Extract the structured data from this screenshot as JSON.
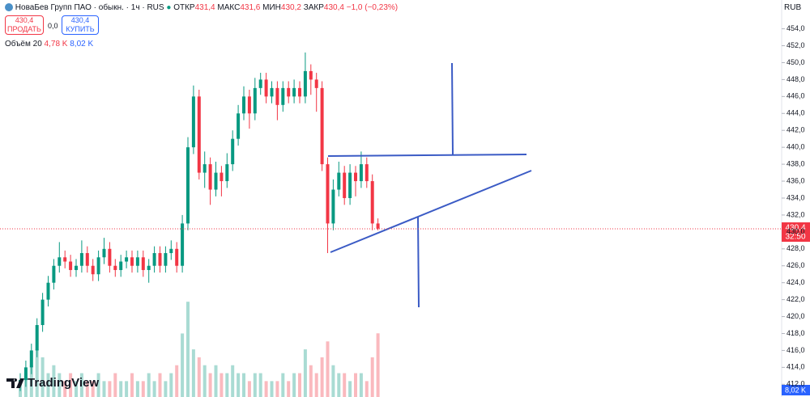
{
  "header": {
    "symbol": "НоваБев Групп ПАО · обыкн. · 1ч · RUS",
    "ohlc": [
      {
        "label": "ОТКР",
        "value": "431,4"
      },
      {
        "label": "МАКС",
        "value": "431,6"
      },
      {
        "label": "МИН",
        "value": "430,2"
      },
      {
        "label": "ЗАКР",
        "value": "430,4"
      }
    ],
    "change": "−1,0 (−0,23%)",
    "currency": "RUB"
  },
  "trade": {
    "sell_price": "430,4",
    "sell": "ПРОДАТЬ",
    "spread": "0,0",
    "buy_price": "430,4",
    "buy": "КУПИТЬ"
  },
  "volume_legend": {
    "name": "Объём 20",
    "ma": "4,78 K",
    "last": "8,02 K"
  },
  "price_tag": {
    "price": "430,4",
    "countdown": "32:50"
  },
  "logo": "TradingView",
  "chart_data": {
    "type": "candlestick",
    "up_color": "#089981",
    "down_color": "#f23645",
    "open": [
      412,
      412.5,
      414,
      416,
      419,
      422,
      424,
      426,
      427,
      426.5,
      425.5,
      426,
      427.5,
      426,
      425,
      427,
      428,
      426,
      425.5,
      426.5,
      427,
      426,
      427,
      425.5,
      426,
      427.5,
      426,
      427.5,
      428,
      426,
      431,
      440,
      446,
      437,
      438,
      435,
      437,
      436,
      438,
      441,
      444,
      446,
      444,
      447,
      448,
      446,
      447,
      445,
      447,
      446,
      447,
      446,
      449,
      448,
      447,
      438,
      431,
      435,
      437,
      434,
      437,
      436,
      438,
      436,
      431
    ],
    "high": [
      413.3,
      414.8,
      416.8,
      419.8,
      422.8,
      424.8,
      426.8,
      428.8,
      427.8,
      427.3,
      426.8,
      429,
      428.3,
      426.8,
      427.8,
      429.3,
      428.8,
      426.8,
      427.3,
      427.8,
      427.8,
      427.8,
      427.8,
      426.8,
      428.3,
      428.3,
      428.3,
      429,
      428.8,
      432,
      441.2,
      447.3,
      446.8,
      439.5,
      438.8,
      438.3,
      437.8,
      439.3,
      442,
      445,
      447.2,
      446.8,
      448.2,
      448.8,
      448.8,
      447.8,
      447.8,
      447.8,
      447.8,
      448,
      447.8,
      451.2,
      449.8,
      448.8,
      447.8,
      438.8,
      436.2,
      438.3,
      437.8,
      438,
      437.8,
      439.5,
      438.8,
      436.8,
      431.6
    ],
    "low": [
      411.2,
      411.7,
      413.2,
      415.2,
      418.2,
      421.2,
      423.2,
      425.2,
      425.7,
      424.7,
      424.7,
      425.2,
      425.2,
      424.2,
      424.2,
      426.2,
      425.2,
      424.7,
      424.7,
      425.7,
      425.2,
      425.2,
      424.7,
      424,
      425.2,
      425.2,
      425.2,
      426.7,
      425.2,
      425.2,
      430.2,
      439.2,
      436.2,
      435.2,
      433.2,
      434.2,
      434.2,
      435.2,
      437.2,
      440.2,
      443.2,
      442.2,
      443.2,
      446.2,
      445.2,
      445.2,
      443.2,
      444.2,
      445.2,
      445.2,
      445.2,
      445.2,
      446.2,
      444.2,
      437.2,
      427.5,
      430.2,
      434.2,
      433.2,
      433.2,
      434.2,
      435.2,
      435.2,
      430.2,
      430.2
    ],
    "close": [
      412.5,
      414,
      416,
      419,
      422,
      424,
      426,
      427,
      426.5,
      425.5,
      426,
      427.5,
      426,
      425,
      427,
      428,
      426,
      425.5,
      426.5,
      427,
      426,
      427,
      425.5,
      426,
      427.5,
      426,
      427.5,
      428,
      426,
      431,
      440,
      446,
      437,
      438,
      435,
      437,
      436,
      438,
      441,
      444,
      446,
      444,
      447,
      448,
      446,
      447,
      445,
      447,
      446,
      447,
      446,
      449,
      448,
      447,
      438,
      431,
      435,
      437,
      434,
      437,
      436,
      438,
      436,
      431,
      430.4
    ],
    "volume": [
      2,
      3,
      4,
      6,
      5,
      3,
      4,
      3,
      2,
      3,
      2,
      3,
      2,
      2,
      3,
      2,
      2,
      3,
      2,
      2,
      3,
      2,
      2,
      3,
      2,
      3,
      2,
      3,
      4,
      8,
      12,
      6,
      5,
      4,
      3,
      4,
      3,
      3,
      4,
      3,
      3,
      2,
      3,
      3,
      2,
      2,
      2,
      3,
      2,
      3,
      3,
      6,
      4,
      3,
      5,
      7,
      4,
      3,
      3,
      2,
      3,
      3,
      2,
      5,
      8.02
    ],
    "ylim": [
      410.5,
      457.4
    ],
    "y2lim": [
      0,
      50
    ],
    "yticks": [
      {
        "value": 412,
        "label": "412,0"
      },
      {
        "value": 414,
        "label": "414,0"
      },
      {
        "value": 416,
        "label": "416,0"
      },
      {
        "value": 418,
        "label": "418,0"
      },
      {
        "value": 420,
        "label": "420,0"
      },
      {
        "value": 422,
        "label": "422,0"
      },
      {
        "value": 424,
        "label": "424,0"
      },
      {
        "value": 426,
        "label": "426,0"
      },
      {
        "value": 428,
        "label": "428,0"
      },
      {
        "value": 430,
        "label": "430,0"
      },
      {
        "value": 432,
        "label": "432,0"
      },
      {
        "value": 434,
        "label": "434,0"
      },
      {
        "value": 436,
        "label": "436,0"
      },
      {
        "value": 438,
        "label": "438,0"
      },
      {
        "value": 440,
        "label": "440,0"
      },
      {
        "value": 442,
        "label": "442,0"
      },
      {
        "value": 444,
        "label": "444,0"
      },
      {
        "value": 446,
        "label": "446,0"
      },
      {
        "value": 448,
        "label": "448,0"
      },
      {
        "value": 450,
        "label": "450,0"
      },
      {
        "value": 452,
        "label": "452,0"
      },
      {
        "value": 454,
        "label": "454,0"
      }
    ]
  }
}
